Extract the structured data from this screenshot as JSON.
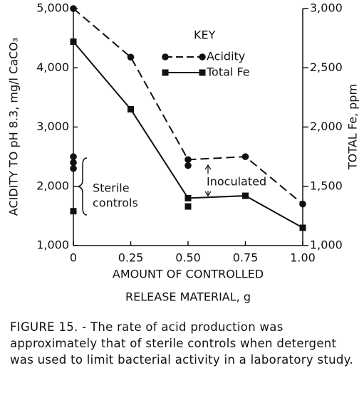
{
  "chart_data": {
    "type": "line",
    "y_label": "ACIDITY TO pH 8.3, mg/l CaCO₃",
    "y2_label": "TOTAL Fe, ppm",
    "x_label": [
      "AMOUNT OF CONTROLLED",
      "RELEASE MATERIAL, g"
    ],
    "legend_title": "KEY",
    "annotations": {
      "sterile": [
        "Sterile",
        "controls"
      ],
      "inoculated": "Inoculated"
    },
    "x": [
      0,
      0.25,
      0.5,
      0.75,
      1.0
    ],
    "xlim": [
      0,
      1.0
    ],
    "xticks": [
      0,
      0.25,
      {
        "value": 0.5,
        "label": "0.50"
      },
      0.75,
      {
        "value": 1.0,
        "label": "1.00"
      }
    ],
    "ylim": [
      1000,
      5000
    ],
    "yticks": [
      {
        "value": 1000,
        "label": "1,000"
      },
      {
        "value": 2000,
        "label": "2,000"
      },
      {
        "value": 3000,
        "label": "3,000"
      },
      {
        "value": 4000,
        "label": "4,000"
      },
      {
        "value": 5000,
        "label": "5,000"
      }
    ],
    "y2lim": [
      1000,
      3000
    ],
    "y2ticks": [
      {
        "value": 1000,
        "label": "1,000"
      },
      {
        "value": 1500,
        "label": "1,500"
      },
      {
        "value": 2000,
        "label": "2,000"
      },
      {
        "value": 2500,
        "label": "2,500"
      },
      {
        "value": 3000,
        "label": "3,000"
      }
    ],
    "series": [
      {
        "name": "Acidity",
        "color": "#111111",
        "marker": "circle",
        "dashed": true,
        "values": [
          5000,
          4180,
          2450,
          2500,
          1700
        ],
        "extra_x": [
          0,
          0,
          0,
          0.5
        ],
        "extra_values": [
          2500,
          2400,
          2300,
          2350
        ]
      },
      {
        "name": "Total Fe",
        "color": "#111111",
        "marker": "square",
        "dashed": false,
        "axis": "y2",
        "values": [
          2720,
          2150,
          1400,
          1420,
          1150
        ],
        "extra_x": [
          0,
          0.5
        ],
        "extra_values": [
          1290,
          1330
        ]
      }
    ]
  },
  "caption": "FIGURE 15. - The rate of acid production was approximately that of sterile controls when detergent was used to limit bacterial activity in a laboratory study."
}
